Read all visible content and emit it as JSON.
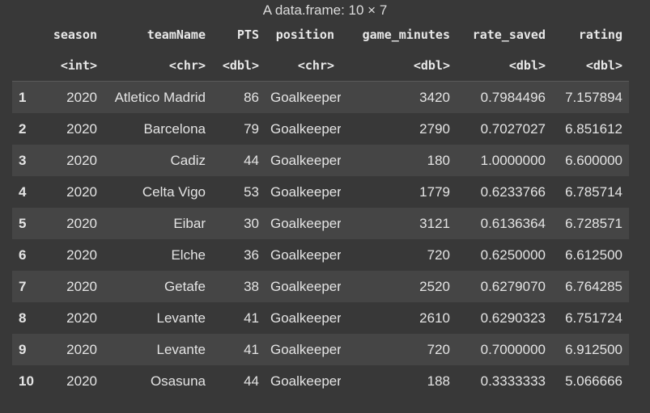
{
  "caption": "A data.frame: 10 × 7",
  "columns": [
    {
      "name": "season",
      "type": "<int>"
    },
    {
      "name": "teamName",
      "type": "<chr>"
    },
    {
      "name": "PTS",
      "type": "<dbl>"
    },
    {
      "name": "position",
      "type": "<chr>"
    },
    {
      "name": "game_minutes",
      "type": "<dbl>"
    },
    {
      "name": "rate_saved",
      "type": "<dbl>"
    },
    {
      "name": "rating",
      "type": "<dbl>"
    }
  ],
  "rows": [
    {
      "idx": "1",
      "cells": [
        "2020",
        "Atletico Madrid",
        "86",
        "Goalkeeper",
        "3420",
        "0.7984496",
        "7.157894"
      ]
    },
    {
      "idx": "2",
      "cells": [
        "2020",
        "Barcelona",
        "79",
        "Goalkeeper",
        "2790",
        "0.7027027",
        "6.851612"
      ]
    },
    {
      "idx": "3",
      "cells": [
        "2020",
        "Cadiz",
        "44",
        "Goalkeeper",
        "180",
        "1.0000000",
        "6.600000"
      ]
    },
    {
      "idx": "4",
      "cells": [
        "2020",
        "Celta Vigo",
        "53",
        "Goalkeeper",
        "1779",
        "0.6233766",
        "6.785714"
      ]
    },
    {
      "idx": "5",
      "cells": [
        "2020",
        "Eibar",
        "30",
        "Goalkeeper",
        "3121",
        "0.6136364",
        "6.728571"
      ]
    },
    {
      "idx": "6",
      "cells": [
        "2020",
        "Elche",
        "36",
        "Goalkeeper",
        "720",
        "0.6250000",
        "6.612500"
      ]
    },
    {
      "idx": "7",
      "cells": [
        "2020",
        "Getafe",
        "38",
        "Goalkeeper",
        "2520",
        "0.6279070",
        "6.764285"
      ]
    },
    {
      "idx": "8",
      "cells": [
        "2020",
        "Levante",
        "41",
        "Goalkeeper",
        "2610",
        "0.6290323",
        "6.751724"
      ]
    },
    {
      "idx": "9",
      "cells": [
        "2020",
        "Levante",
        "41",
        "Goalkeeper",
        "720",
        "0.7000000",
        "6.912500"
      ]
    },
    {
      "idx": "10",
      "cells": [
        "2020",
        "Osasuna",
        "44",
        "Goalkeeper",
        "188",
        "0.3333333",
        "5.066666"
      ]
    }
  ]
}
